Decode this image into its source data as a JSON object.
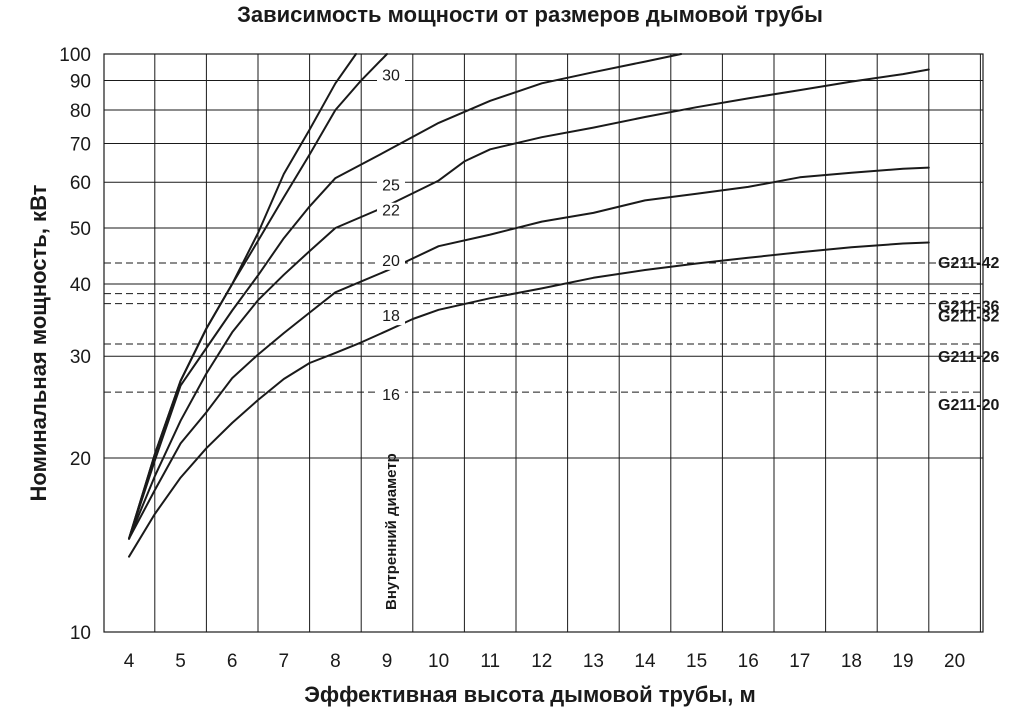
{
  "chart_data": {
    "type": "line",
    "title": "Зависимость мощности от размеров дымовой трубы",
    "xlabel": "Эффективная высота дымовой трубы, м",
    "ylabel": "Номинальная мощность, кВт",
    "xlim": [
      4,
      20
    ],
    "ylim": [
      10,
      100
    ],
    "yscale": "log",
    "grid": true,
    "x_ticks": [
      4,
      5,
      6,
      7,
      8,
      9,
      10,
      11,
      12,
      13,
      14,
      15,
      16,
      17,
      18,
      19,
      20
    ],
    "y_ticks": [
      10,
      20,
      30,
      40,
      50,
      60,
      70,
      80,
      90,
      100
    ],
    "series_group_label": "Внутренний диаметр",
    "series": [
      {
        "name": "16",
        "points": [
          [
            4,
            13.5
          ],
          [
            4.5,
            16
          ],
          [
            5,
            18.5
          ],
          [
            5.5,
            20.8
          ],
          [
            6,
            23
          ],
          [
            6.5,
            25.2
          ],
          [
            7,
            27.4
          ],
          [
            7.5,
            29.2
          ],
          [
            8,
            30.4
          ],
          [
            8.5,
            31.7
          ],
          [
            9,
            33.2
          ],
          [
            9.5,
            34.8
          ],
          [
            10,
            36.1
          ],
          [
            11,
            37.8
          ],
          [
            12,
            39.3
          ],
          [
            13,
            41
          ],
          [
            14,
            42.3
          ],
          [
            15,
            43.4
          ],
          [
            16,
            44.4
          ],
          [
            17,
            45.4
          ],
          [
            18,
            46.3
          ],
          [
            19,
            47
          ],
          [
            19.5,
            47.2
          ]
        ]
      },
      {
        "name": "18",
        "points": [
          [
            4,
            14.5
          ],
          [
            4.5,
            17.6
          ],
          [
            5,
            21.2
          ],
          [
            5.5,
            24
          ],
          [
            6,
            27.5
          ],
          [
            6.5,
            30.2
          ],
          [
            7,
            32.9
          ],
          [
            7.5,
            35.7
          ],
          [
            8,
            38.7
          ],
          [
            9,
            42.2
          ],
          [
            10,
            46.5
          ],
          [
            11,
            48.7
          ],
          [
            12,
            51.3
          ],
          [
            13,
            53.1
          ],
          [
            14,
            55.8
          ],
          [
            15,
            57.3
          ],
          [
            16,
            58.9
          ],
          [
            17,
            61.2
          ],
          [
            18,
            62.3
          ],
          [
            19,
            63.3
          ],
          [
            19.5,
            63.6
          ]
        ]
      },
      {
        "name": "20",
        "points": [
          [
            4,
            14.5
          ],
          [
            4.5,
            18.6
          ],
          [
            5,
            23.2
          ],
          [
            5.5,
            28
          ],
          [
            6,
            33
          ],
          [
            6.5,
            37.5
          ],
          [
            7,
            41.5
          ],
          [
            7.5,
            45.6
          ],
          [
            8,
            50
          ],
          [
            9,
            54.6
          ],
          [
            10,
            60.4
          ],
          [
            10.5,
            65.2
          ],
          [
            11,
            68.4
          ],
          [
            12,
            71.8
          ],
          [
            13,
            74.6
          ],
          [
            14,
            77.8
          ],
          [
            15,
            80.9
          ],
          [
            16,
            83.8
          ],
          [
            17,
            86.6
          ],
          [
            18,
            89.6
          ],
          [
            19,
            92.3
          ],
          [
            19.5,
            94
          ]
        ]
      },
      {
        "name": "22",
        "points": [
          [
            4,
            14.5
          ],
          [
            4.5,
            19.8
          ],
          [
            5,
            26.7
          ],
          [
            5.5,
            31
          ],
          [
            6,
            36
          ],
          [
            6.5,
            41.4
          ],
          [
            7,
            48
          ],
          [
            7.5,
            54.5
          ],
          [
            8,
            61
          ],
          [
            9,
            68
          ],
          [
            10,
            76
          ],
          [
            11,
            83
          ],
          [
            12,
            89
          ],
          [
            13,
            93
          ],
          [
            14,
            97
          ],
          [
            14.7,
            100
          ]
        ]
      },
      {
        "name": "25",
        "points": [
          [
            4,
            14.5
          ],
          [
            4.5,
            20.3
          ],
          [
            5,
            27.2
          ],
          [
            5.5,
            33.5
          ],
          [
            6,
            40
          ],
          [
            6.5,
            47.5
          ],
          [
            7,
            56.5
          ],
          [
            7.5,
            67
          ],
          [
            8,
            80
          ],
          [
            8.5,
            90
          ],
          [
            9,
            100
          ]
        ]
      },
      {
        "name": "30",
        "points": [
          [
            4,
            14.5
          ],
          [
            4.5,
            20.3
          ],
          [
            5,
            27.2
          ],
          [
            5.5,
            33.5
          ],
          [
            6,
            40
          ],
          [
            6.5,
            49
          ],
          [
            7,
            62
          ],
          [
            7.5,
            74
          ],
          [
            8,
            89
          ],
          [
            8.4,
            100
          ]
        ]
      }
    ],
    "reference_lines": [
      {
        "label": "G211-42",
        "y": 43.5
      },
      {
        "label": "G211-36",
        "y": 38.5
      },
      {
        "label": "G211-32",
        "y": 37
      },
      {
        "label": "G211-26",
        "y": 31.5
      },
      {
        "label": "G211-20",
        "y": 26
      }
    ]
  }
}
